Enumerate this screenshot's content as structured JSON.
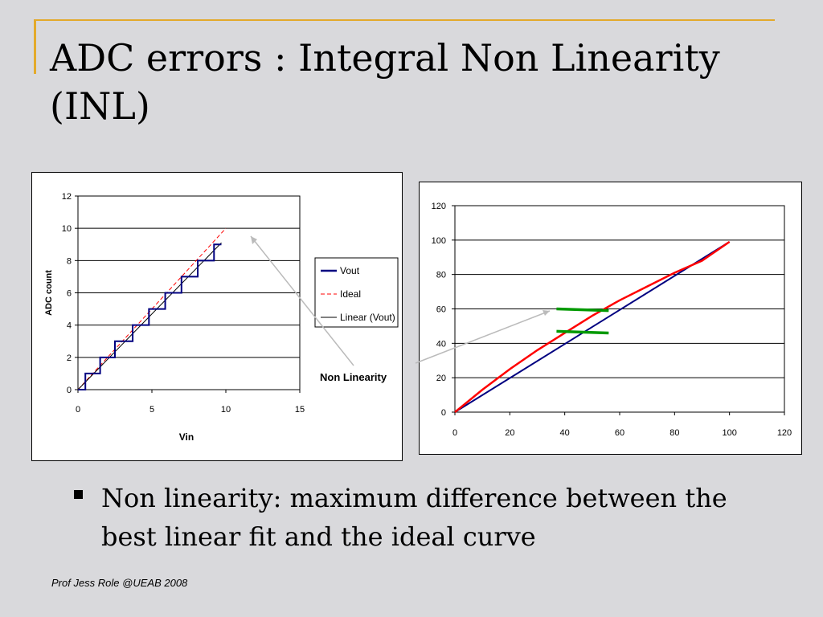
{
  "slide": {
    "title_line1": "ADC errors : Integral Non Linearity",
    "title_line2": "(INL)",
    "bullet": "Non linearity: maximum difference between the best linear fit and the ideal curve",
    "footer": "Prof Jess Role @UEAB 2008",
    "callout": "Non Linearity"
  },
  "colors": {
    "accent": "#e3aa2b",
    "vout": "#000080",
    "ideal": "#ff0000",
    "linear": "#000000",
    "highlight": "#009900"
  },
  "chart_data": [
    {
      "type": "line",
      "title": "",
      "xlabel": "Vin",
      "ylabel": "ADC count",
      "xlim": [
        0,
        15
      ],
      "ylim": [
        0,
        12
      ],
      "xticks": [
        "0",
        "5",
        "10",
        "15"
      ],
      "yticks": [
        "0",
        "2",
        "4",
        "6",
        "8",
        "10",
        "12"
      ],
      "grid": "horizontal",
      "legend": "right",
      "series": [
        {
          "name": "Vout",
          "style": "step",
          "x": [
            0,
            0.5,
            0.5,
            1.5,
            1.5,
            2.5,
            2.5,
            3.7,
            3.7,
            4.8,
            4.8,
            5.9,
            5.9,
            7.0,
            7.0,
            8.1,
            8.1,
            9.2,
            9.2,
            9.7
          ],
          "y": [
            0,
            0,
            1,
            1,
            2,
            2,
            3,
            3,
            4,
            4,
            5,
            5,
            6,
            6,
            7,
            7,
            8,
            8,
            9,
            9
          ]
        },
        {
          "name": "Ideal",
          "style": "dashed",
          "x": [
            0,
            10
          ],
          "y": [
            0,
            10
          ]
        },
        {
          "name": "Linear (Vout)",
          "style": "solid",
          "x": [
            0,
            9.7
          ],
          "y": [
            0,
            9.1
          ]
        }
      ]
    },
    {
      "type": "line",
      "title": "",
      "xlabel": "",
      "ylabel": "",
      "xlim": [
        0,
        120
      ],
      "ylim": [
        0,
        120
      ],
      "xticks": [
        "0",
        "20",
        "40",
        "60",
        "80",
        "100",
        "120"
      ],
      "yticks": [
        "0",
        "20",
        "40",
        "60",
        "80",
        "100",
        "120"
      ],
      "grid": "horizontal",
      "legend": "none",
      "series": [
        {
          "color": "red",
          "x": [
            0,
            10,
            20,
            30,
            40,
            50,
            60,
            70,
            80,
            90,
            100
          ],
          "y": [
            0,
            13,
            25,
            36,
            46,
            56,
            65,
            73,
            81,
            88,
            99
          ]
        },
        {
          "color": "navy",
          "x": [
            0,
            100
          ],
          "y": [
            0,
            99
          ]
        }
      ],
      "annotations": [
        {
          "type": "segment",
          "color": "green",
          "x": [
            37,
            56
          ],
          "y": [
            60,
            59
          ]
        },
        {
          "type": "segment",
          "color": "green",
          "x": [
            37,
            56
          ],
          "y": [
            47,
            46
          ]
        }
      ]
    }
  ]
}
